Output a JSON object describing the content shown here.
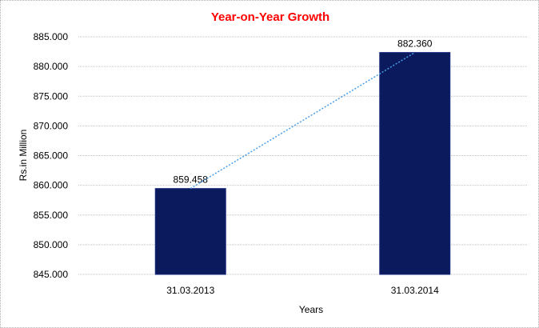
{
  "chart_data": {
    "type": "bar",
    "title": "Year-on-Year Growth",
    "xlabel": "Years",
    "ylabel": "Rs.in Million",
    "categories": [
      "31.03.2013",
      "31.03.2014"
    ],
    "values": [
      859.458,
      882.36
    ],
    "data_labels": [
      "859.458",
      "882.360"
    ],
    "ylim": [
      845,
      885
    ],
    "yticks": [
      "845.000",
      "850.000",
      "855.000",
      "860.000",
      "865.000",
      "870.000",
      "875.000",
      "880.000",
      "885.000"
    ],
    "grid": true,
    "trendline": "linear, dotted",
    "colors": {
      "bar": "#0a1a5c",
      "title": "#ff0000",
      "trendline": "#4a9ee8",
      "grid": "#c0c0c0"
    }
  }
}
